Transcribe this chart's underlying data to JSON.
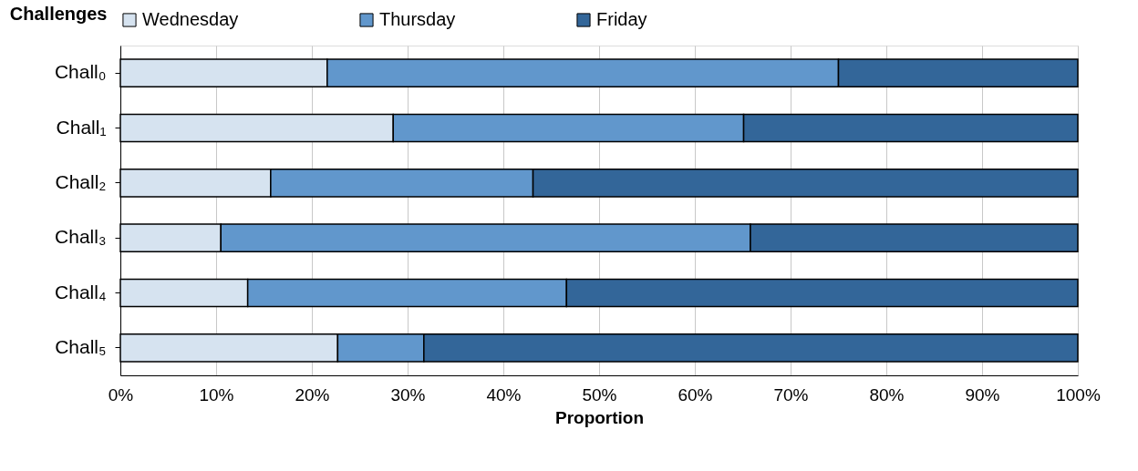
{
  "chart_data": {
    "type": "bar",
    "orientation": "horizontal",
    "stacked": true,
    "categories": [
      "Chall₀",
      "Chall₁",
      "Chall₂",
      "Chall₃",
      "Chall₄",
      "Chall₅"
    ],
    "series": [
      {
        "name": "Wednesday",
        "color": "#d6e3f0",
        "values": [
          21.6,
          28.5,
          15.7,
          10.5,
          13.3,
          22.7
        ]
      },
      {
        "name": "Thursday",
        "color": "#6197cc",
        "values": [
          53.4,
          36.6,
          27.4,
          55.3,
          33.3,
          9.0
        ]
      },
      {
        "name": "Friday",
        "color": "#336699",
        "values": [
          25.0,
          34.9,
          56.9,
          34.2,
          53.4,
          68.3
        ]
      }
    ],
    "xlabel": "Proportion",
    "ylabel": "Challenges",
    "xlim": [
      0,
      100
    ],
    "xticks": [
      {
        "value": 0,
        "label": "0%"
      },
      {
        "value": 10,
        "label": "10%"
      },
      {
        "value": 20,
        "label": "20%"
      },
      {
        "value": 30,
        "label": "30%"
      },
      {
        "value": 40,
        "label": "40%"
      },
      {
        "value": 50,
        "label": "50%"
      },
      {
        "value": 60,
        "label": "60%"
      },
      {
        "value": 70,
        "label": "70%"
      },
      {
        "value": 80,
        "label": "80%"
      },
      {
        "value": 90,
        "label": "90%"
      },
      {
        "value": 100,
        "label": "100%"
      }
    ],
    "grid": "x",
    "legend": "top"
  }
}
